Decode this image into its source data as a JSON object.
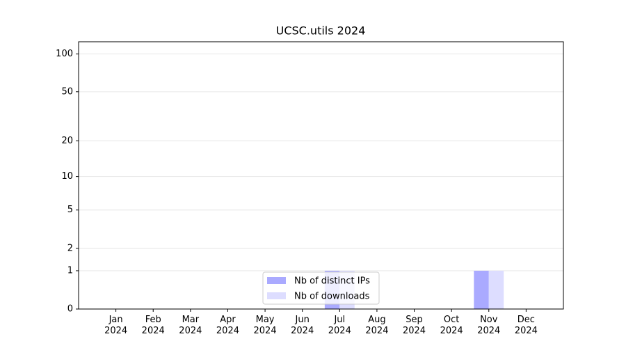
{
  "chart_data": {
    "type": "bar",
    "title": "UCSC.utils 2024",
    "categories": [
      "Jan\n2024",
      "Feb\n2024",
      "Mar\n2024",
      "Apr\n2024",
      "May\n2024",
      "Jun\n2024",
      "Jul\n2024",
      "Aug\n2024",
      "Sep\n2024",
      "Oct\n2024",
      "Nov\n2024",
      "Dec\n2024"
    ],
    "series": [
      {
        "name": "Nb of distinct IPs",
        "color": "#aaaaff",
        "values": [
          0,
          0,
          0,
          0,
          0,
          0,
          1,
          0,
          0,
          0,
          1,
          0
        ]
      },
      {
        "name": "Nb of downloads",
        "color": "#ddddff",
        "values": [
          0,
          0,
          0,
          0,
          0,
          0,
          1,
          0,
          0,
          0,
          1,
          0
        ]
      }
    ],
    "yscale": "log1p",
    "ylim": [
      0,
      125
    ],
    "yticks": [
      0,
      1,
      2,
      5,
      10,
      20,
      50,
      100
    ],
    "grid": true,
    "legend": "lower center"
  }
}
